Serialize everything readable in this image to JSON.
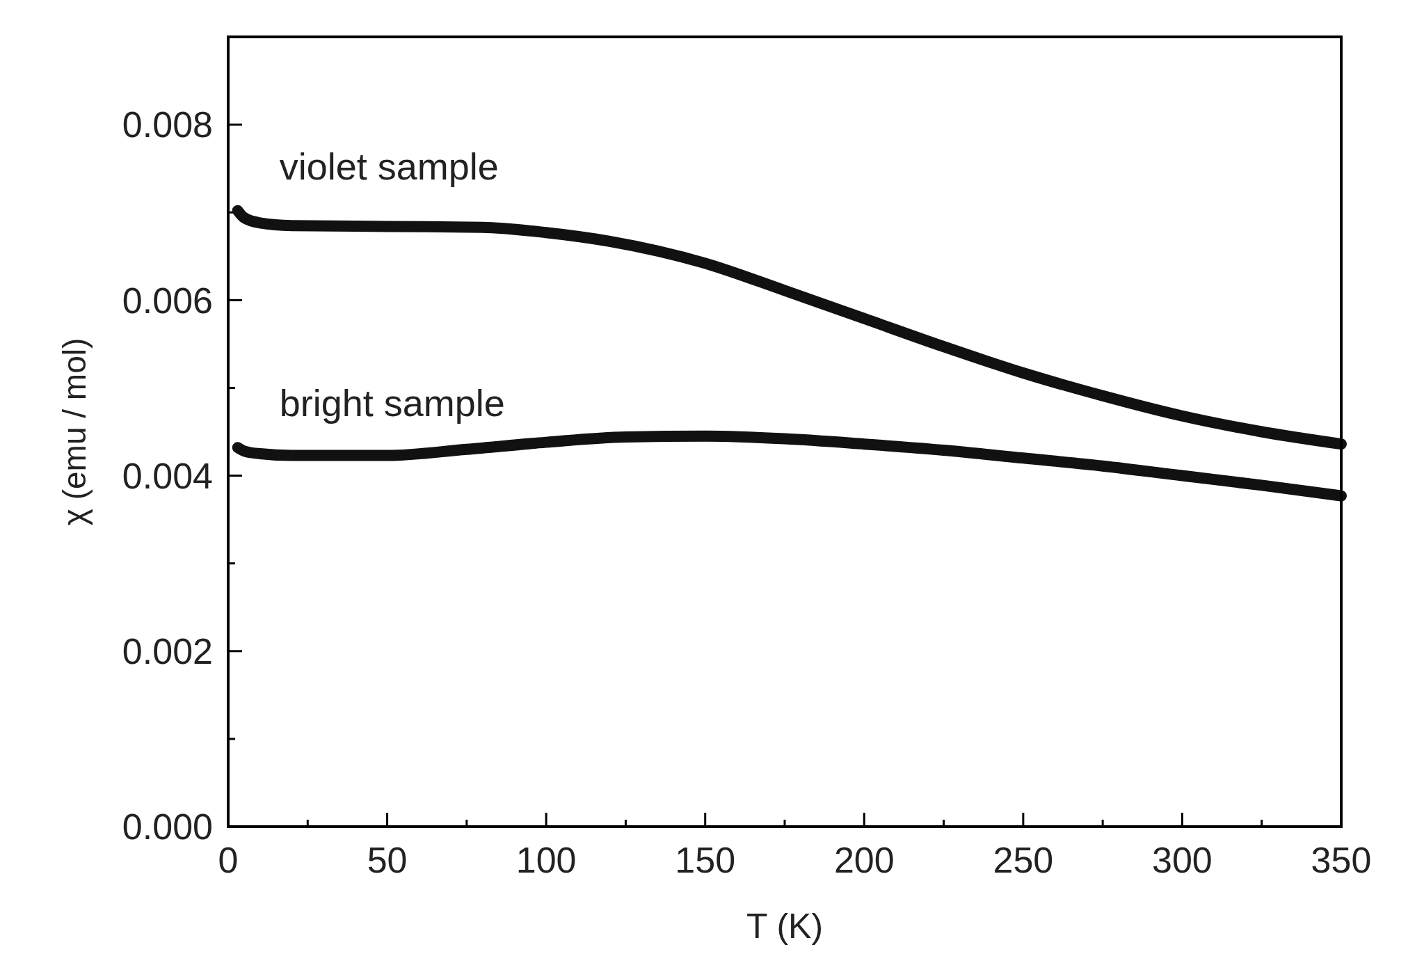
{
  "chart_data": {
    "type": "line",
    "xlabel": "T (K)",
    "ylabel": "χ (emu / mol)",
    "xlim": [
      0,
      350
    ],
    "ylim": [
      0,
      0.009
    ],
    "xticks": [
      0,
      {
        "value": 25,
        "label": null
      },
      50,
      {
        "value": 75,
        "label": null
      },
      100,
      {
        "value": 125,
        "label": null
      },
      150,
      {
        "value": 175,
        "label": null
      },
      200,
      {
        "value": 225,
        "label": null
      },
      250,
      {
        "value": 275,
        "label": null
      },
      300,
      {
        "value": 325,
        "label": null
      },
      350
    ],
    "yticks": [
      {
        "value": 0,
        "label": "0.000"
      },
      {
        "value": 0.001,
        "label": null
      },
      {
        "value": 0.002,
        "label": "0.002"
      },
      {
        "value": 0.003,
        "label": null
      },
      {
        "value": 0.004,
        "label": "0.004"
      },
      {
        "value": 0.005,
        "label": null
      },
      {
        "value": 0.006,
        "label": "0.006"
      },
      {
        "value": 0.007,
        "label": null
      },
      {
        "value": 0.008,
        "label": "0.008"
      }
    ],
    "grid": false,
    "line_style": "solid",
    "series": [
      {
        "name": "violet sample",
        "color": "#111111",
        "x": [
          3,
          5,
          10,
          20,
          50,
          80,
          100,
          120,
          150,
          175,
          200,
          225,
          250,
          275,
          300,
          325,
          350
        ],
        "values": [
          0.00702,
          0.00694,
          0.00688,
          0.00685,
          0.00684,
          0.00683,
          0.00677,
          0.00667,
          0.00642,
          0.00611,
          0.00579,
          0.00547,
          0.00517,
          0.00491,
          0.00468,
          0.0045,
          0.00436
        ]
      },
      {
        "name": "bright sample",
        "color": "#111111",
        "x": [
          3,
          5,
          10,
          20,
          50,
          75,
          100,
          125,
          150,
          175,
          200,
          225,
          250,
          275,
          300,
          325,
          350
        ],
        "values": [
          0.00432,
          0.00428,
          0.00425,
          0.00423,
          0.00423,
          0.0043,
          0.00438,
          0.00444,
          0.00445,
          0.00442,
          0.00436,
          0.00429,
          0.0042,
          0.00411,
          0.004,
          0.00389,
          0.00377
        ]
      }
    ]
  }
}
